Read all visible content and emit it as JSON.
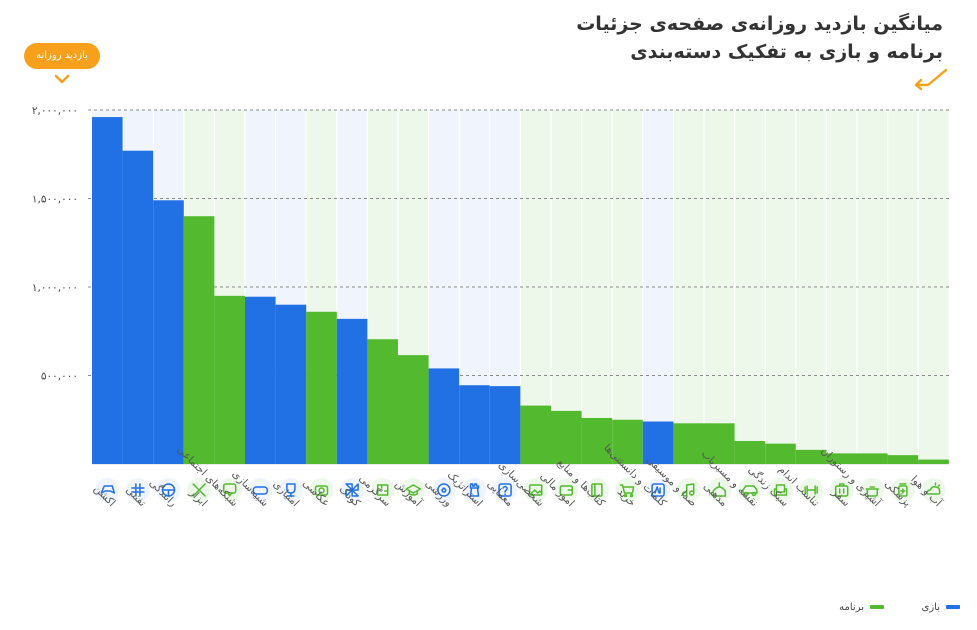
{
  "chart_data": {
    "type": "bar",
    "title": "میانگین بازدید روزانه‌ی صفحه‌ی جزئیات برنامه و بازی به تفکیک دسته‌بندی",
    "title_lines": [
      "میانگین بازدید روزانه‌ی صفحه‌ی جزئیات",
      "برنامه و بازی به تفکیک دسته‌بندی"
    ],
    "ylabel": "بازدید روزانه",
    "xlabel": "",
    "ylim": [
      0,
      2000000
    ],
    "yticks": [
      "۵۰۰,۰۰۰",
      "۱,۰۰۰,۰۰۰",
      "۱,۵۰۰,۰۰۰",
      "۲,۰۰۰,۰۰۰"
    ],
    "grid": true,
    "legend_position": "bottom-right",
    "series_meta": {
      "game": {
        "name": "بازی",
        "color": "#2170e4"
      },
      "app": {
        "name": "برنامه",
        "color": "#53b92e"
      }
    },
    "categories": [
      {
        "label": "اکشن",
        "type": "game",
        "value": 1960000,
        "icon": "gamepad-icon"
      },
      {
        "label": "تفننی",
        "type": "game",
        "value": 1770000,
        "icon": "tictactoe-icon"
      },
      {
        "label": "رانندگی",
        "type": "game",
        "value": 1490000,
        "icon": "steering-wheel-icon"
      },
      {
        "label": "ابزار",
        "type": "app",
        "value": 1400000,
        "icon": "tools-icon"
      },
      {
        "label": "شبکه‌های اجتماعی",
        "type": "app",
        "value": 950000,
        "icon": "chat-icon"
      },
      {
        "label": "شبیه‌سازی",
        "type": "game",
        "value": 945000,
        "icon": "vr-glasses-icon"
      },
      {
        "label": "امتیازی",
        "type": "game",
        "value": 900000,
        "icon": "trophy-icon"
      },
      {
        "label": "عکاسی",
        "type": "app",
        "value": 860000,
        "icon": "camera-icon"
      },
      {
        "label": "کودک",
        "type": "game",
        "value": 820000,
        "icon": "pinwheel-icon"
      },
      {
        "label": "سرگرمی",
        "type": "app",
        "value": 705000,
        "icon": "puzzle-icon"
      },
      {
        "label": "آموزش",
        "type": "app",
        "value": 615000,
        "icon": "graduation-cap-icon"
      },
      {
        "label": "ورزشی",
        "type": "game",
        "value": 540000,
        "icon": "football-icon"
      },
      {
        "label": "استراتژیک",
        "type": "game",
        "value": 445000,
        "icon": "chess-rook-icon"
      },
      {
        "label": "معمایی",
        "type": "game",
        "value": 440000,
        "icon": "question-icon"
      },
      {
        "label": "شخصی‌سازی",
        "type": "app",
        "value": 330000,
        "icon": "image-icon"
      },
      {
        "label": "امور مالی",
        "type": "app",
        "value": 300000,
        "icon": "wallet-icon"
      },
      {
        "label": "کتاب‌ها و منابع",
        "type": "app",
        "value": 260000,
        "icon": "book-icon"
      },
      {
        "label": "خرید",
        "type": "app",
        "value": 250000,
        "icon": "shopping-cart-icon"
      },
      {
        "label": "کلمات و دانستنی‌ها",
        "type": "game",
        "value": 240000,
        "icon": "letters-icon"
      },
      {
        "label": "صدا و موسیقی",
        "type": "app",
        "value": 230000,
        "icon": "music-note-icon"
      },
      {
        "label": "مذهبی",
        "type": "app",
        "value": 230000,
        "icon": "mosque-icon"
      },
      {
        "label": "نقشه و مسیریاب",
        "type": "app",
        "value": 130000,
        "icon": "car-icon"
      },
      {
        "label": "سبک زندگی",
        "type": "app",
        "value": 115000,
        "icon": "armchair-icon"
      },
      {
        "label": "تناسب اندام",
        "type": "app",
        "value": 80000,
        "icon": "dumbbell-icon"
      },
      {
        "label": "سفر",
        "type": "app",
        "value": 60000,
        "icon": "suitcase-icon"
      },
      {
        "label": "آشپزی و رستوران",
        "type": "app",
        "value": 60000,
        "icon": "cooking-pot-icon"
      },
      {
        "label": "پزشکی",
        "type": "app",
        "value": 50000,
        "icon": "medicine-bottle-icon"
      },
      {
        "label": "آب و هوا",
        "type": "app",
        "value": 25000,
        "icon": "weather-icon"
      }
    ]
  }
}
